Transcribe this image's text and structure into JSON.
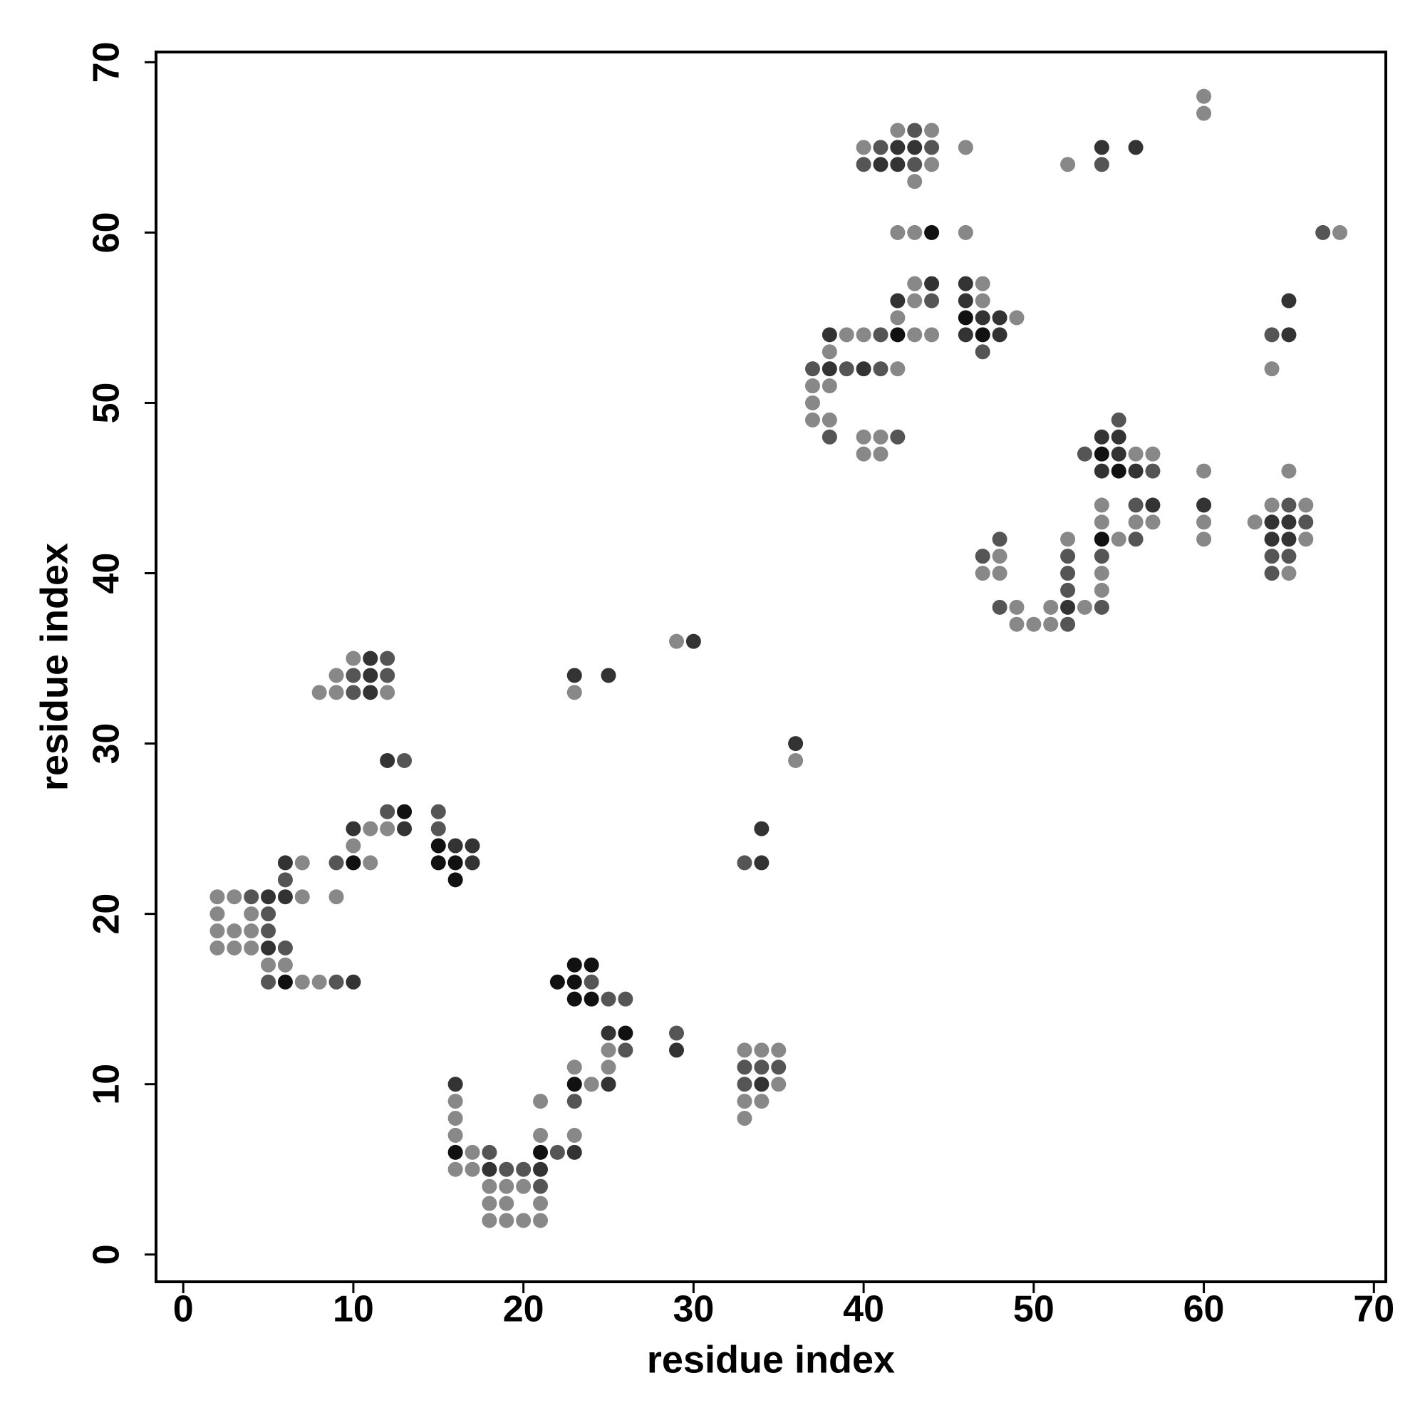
{
  "chart_data": {
    "type": "scatter",
    "x_label": "residue index",
    "y_label": "residue index",
    "xlim": [
      -1.6,
      70.7
    ],
    "ylim": [
      -1.6,
      70.6
    ],
    "xticks": [
      0,
      10,
      20,
      30,
      40,
      50,
      60,
      70
    ],
    "yticks": [
      0,
      10,
      20,
      30,
      40,
      50,
      60,
      70
    ],
    "x": [
      2,
      3,
      4,
      5,
      6,
      7,
      9,
      2,
      4,
      5,
      2,
      3,
      4,
      5,
      2,
      3,
      4,
      5,
      6,
      5,
      6,
      5,
      6,
      7,
      8,
      9,
      10,
      6,
      6,
      7,
      9,
      10,
      11,
      10,
      10,
      11,
      12,
      13,
      12,
      13,
      12,
      13,
      8,
      9,
      10,
      11,
      12,
      9,
      10,
      11,
      12,
      10,
      11,
      12,
      15,
      15,
      15,
      16,
      17,
      15,
      16,
      17,
      16,
      16,
      16,
      16,
      16,
      16,
      17,
      18,
      21,
      22,
      23,
      16,
      17,
      18,
      19,
      20,
      21,
      18,
      19,
      20,
      21,
      18,
      19,
      21,
      18,
      19,
      20,
      21,
      21,
      23,
      21,
      23,
      23,
      24,
      25,
      23,
      25,
      25,
      26,
      25,
      26,
      23,
      24,
      25,
      26,
      22,
      23,
      24,
      23,
      24,
      29,
      29,
      33,
      34,
      35,
      33,
      34,
      35,
      33,
      34,
      35,
      33,
      34,
      33,
      33,
      34,
      34,
      36,
      36,
      29,
      30,
      23,
      25,
      23,
      37,
      37,
      37,
      37,
      38,
      38,
      38,
      38,
      38,
      38,
      39,
      39,
      40,
      40,
      40,
      40,
      41,
      41,
      41,
      41,
      42,
      42,
      42,
      42,
      42,
      43,
      43,
      43,
      44,
      44,
      44,
      42,
      43,
      44,
      40,
      41,
      42,
      43,
      44,
      40,
      41,
      42,
      43,
      44,
      42,
      43,
      44,
      43,
      46,
      46,
      46,
      47,
      46,
      47,
      46,
      47,
      48,
      49,
      46,
      47,
      48,
      47,
      52,
      54,
      54,
      56,
      60,
      60,
      67,
      68,
      47,
      47,
      48,
      48,
      48,
      48,
      49,
      49,
      50,
      51,
      51,
      52,
      52,
      52,
      52,
      52,
      52,
      53,
      54,
      54,
      54,
      54,
      54,
      54,
      54,
      55,
      56,
      56,
      56,
      57,
      57,
      53,
      54,
      55,
      56,
      57,
      54,
      55,
      55,
      54,
      55,
      56,
      57,
      60,
      60,
      60,
      60,
      63,
      64,
      64,
      64,
      64,
      64,
      65,
      65,
      65,
      65,
      65,
      66,
      66,
      66,
      64,
      64,
      65,
      65,
      65
    ],
    "values": [
      21,
      21,
      21,
      21,
      21,
      21,
      21,
      20,
      20,
      20,
      19,
      19,
      19,
      19,
      18,
      18,
      18,
      18,
      18,
      17,
      17,
      16,
      16,
      16,
      16,
      16,
      16,
      22,
      23,
      23,
      23,
      23,
      23,
      24,
      25,
      25,
      25,
      25,
      26,
      26,
      29,
      29,
      33,
      33,
      33,
      33,
      33,
      34,
      34,
      34,
      34,
      35,
      35,
      35,
      26,
      25,
      24,
      24,
      24,
      23,
      23,
      23,
      22,
      10,
      9,
      8,
      7,
      6,
      6,
      6,
      6,
      6,
      6,
      5,
      5,
      5,
      5,
      5,
      5,
      4,
      4,
      4,
      4,
      3,
      3,
      3,
      2,
      2,
      2,
      2,
      7,
      7,
      9,
      9,
      10,
      10,
      10,
      11,
      11,
      12,
      12,
      13,
      13,
      15,
      15,
      15,
      15,
      16,
      16,
      16,
      17,
      17,
      13,
      12,
      12,
      12,
      12,
      11,
      11,
      11,
      10,
      10,
      10,
      9,
      9,
      8,
      23,
      23,
      25,
      30,
      29,
      36,
      36,
      34,
      34,
      33,
      52,
      51,
      50,
      49,
      54,
      53,
      52,
      51,
      49,
      48,
      54,
      52,
      54,
      52,
      48,
      47,
      54,
      52,
      48,
      47,
      54,
      55,
      56,
      52,
      48,
      54,
      56,
      57,
      54,
      56,
      57,
      60,
      60,
      60,
      64,
      64,
      64,
      64,
      64,
      65,
      65,
      65,
      65,
      65,
      66,
      66,
      66,
      63,
      65,
      60,
      57,
      57,
      56,
      56,
      55,
      55,
      55,
      55,
      54,
      54,
      54,
      53,
      64,
      65,
      64,
      65,
      68,
      67,
      60,
      60,
      41,
      40,
      42,
      41,
      40,
      38,
      38,
      37,
      37,
      38,
      37,
      42,
      41,
      40,
      39,
      38,
      37,
      38,
      44,
      43,
      42,
      41,
      40,
      39,
      38,
      42,
      44,
      43,
      42,
      44,
      43,
      47,
      47,
      47,
      47,
      47,
      48,
      48,
      49,
      46,
      46,
      46,
      46,
      46,
      44,
      43,
      42,
      43,
      44,
      43,
      42,
      41,
      40,
      44,
      43,
      42,
      41,
      40,
      44,
      43,
      42,
      54,
      52,
      56,
      54,
      46
    ],
    "colors": [
      "#888",
      "#888",
      "#555",
      "#333",
      "#333",
      "#888",
      "#888",
      "#888",
      "#888",
      "#555",
      "#888",
      "#888",
      "#888",
      "#555",
      "#888",
      "#888",
      "#888",
      "#333",
      "#555",
      "#888",
      "#888",
      "#555",
      "#111",
      "#888",
      "#888",
      "#555",
      "#333",
      "#555",
      "#333",
      "#888",
      "#555",
      "#111",
      "#888",
      "#888",
      "#333",
      "#888",
      "#888",
      "#333",
      "#555",
      "#111",
      "#333",
      "#555",
      "#888",
      "#888",
      "#555",
      "#333",
      "#888",
      "#888",
      "#555",
      "#333",
      "#555",
      "#888",
      "#333",
      "#555",
      "#555",
      "#555",
      "#111",
      "#333",
      "#333",
      "#111",
      "#111",
      "#333",
      "#111",
      "#333",
      "#888",
      "#888",
      "#888",
      "#111",
      "#888",
      "#555",
      "#111",
      "#555",
      "#333",
      "#888",
      "#888",
      "#333",
      "#555",
      "#555",
      "#333",
      "#888",
      "#888",
      "#888",
      "#555",
      "#888",
      "#888",
      "#888",
      "#888",
      "#888",
      "#888",
      "#888",
      "#888",
      "#888",
      "#888",
      "#555",
      "#111",
      "#888",
      "#333",
      "#888",
      "#888",
      "#888",
      "#555",
      "#333",
      "#111",
      "#111",
      "#111",
      "#555",
      "#555",
      "#111",
      "#111",
      "#555",
      "#111",
      "#111",
      "#555",
      "#333",
      "#888",
      "#888",
      "#888",
      "#555",
      "#555",
      "#555",
      "#555",
      "#333",
      "#888",
      "#888",
      "#888",
      "#888",
      "#555",
      "#333",
      "#333",
      "#333",
      "#888",
      "#888",
      "#333",
      "#333",
      "#333",
      "#888",
      "#555",
      "#888",
      "#888",
      "#888",
      "#333",
      "#888",
      "#333",
      "#888",
      "#888",
      "#555",
      "#888",
      "#555",
      "#888",
      "#333",
      "#888",
      "#888",
      "#555",
      "#555",
      "#888",
      "#888",
      "#111",
      "#888",
      "#333",
      "#888",
      "#555",
      "#888",
      "#888",
      "#888",
      "#888",
      "#555",
      "#333",
      "#888",
      "#888",
      "#111",
      "#555",
      "#333",
      "#333",
      "#555",
      "#888",
      "#888",
      "#555",
      "#333",
      "#333",
      "#555",
      "#888",
      "#555",
      "#888",
      "#888",
      "#888",
      "#888",
      "#333",
      "#888",
      "#333",
      "#888",
      "#111",
      "#333",
      "#333",
      "#888",
      "#333",
      "#111",
      "#333",
      "#555",
      "#888",
      "#333",
      "#555",
      "#333",
      "#888",
      "#888",
      "#555",
      "#888",
      "#555",
      "#888",
      "#555",
      "#888",
      "#888",
      "#555",
      "#888",
      "#888",
      "#888",
      "#888",
      "#888",
      "#888",
      "#555",
      "#555",
      "#555",
      "#333",
      "#555",
      "#888",
      "#888",
      "#888",
      "#111",
      "#555",
      "#888",
      "#888",
      "#555",
      "#888",
      "#555",
      "#888",
      "#555",
      "#333",
      "#888",
      "#555",
      "#111",
      "#333",
      "#888",
      "#888",
      "#333",
      "#333",
      "#555",
      "#333",
      "#111",
      "#333",
      "#555",
      "#888",
      "#333",
      "#888",
      "#888",
      "#888",
      "#888",
      "#333",
      "#333",
      "#555",
      "#555",
      "#555",
      "#333",
      "#333",
      "#555",
      "#888",
      "#888",
      "#555",
      "#888",
      "#555",
      "#888",
      "#333",
      "#333",
      "#888"
    ]
  }
}
